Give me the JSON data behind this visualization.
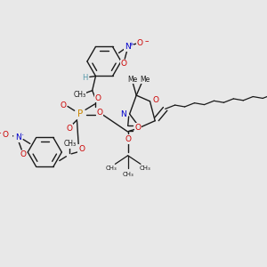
{
  "bg_color": "#e8e8e8",
  "bond_color": "#1a1a1a",
  "o_color": "#cc0000",
  "n_color": "#0000cc",
  "p_color": "#cc8800",
  "h_color": "#5599aa",
  "figw": 3.0,
  "figh": 3.0,
  "dpi": 100,
  "xlim": [
    0,
    3.0
  ],
  "ylim": [
    0,
    3.0
  ]
}
